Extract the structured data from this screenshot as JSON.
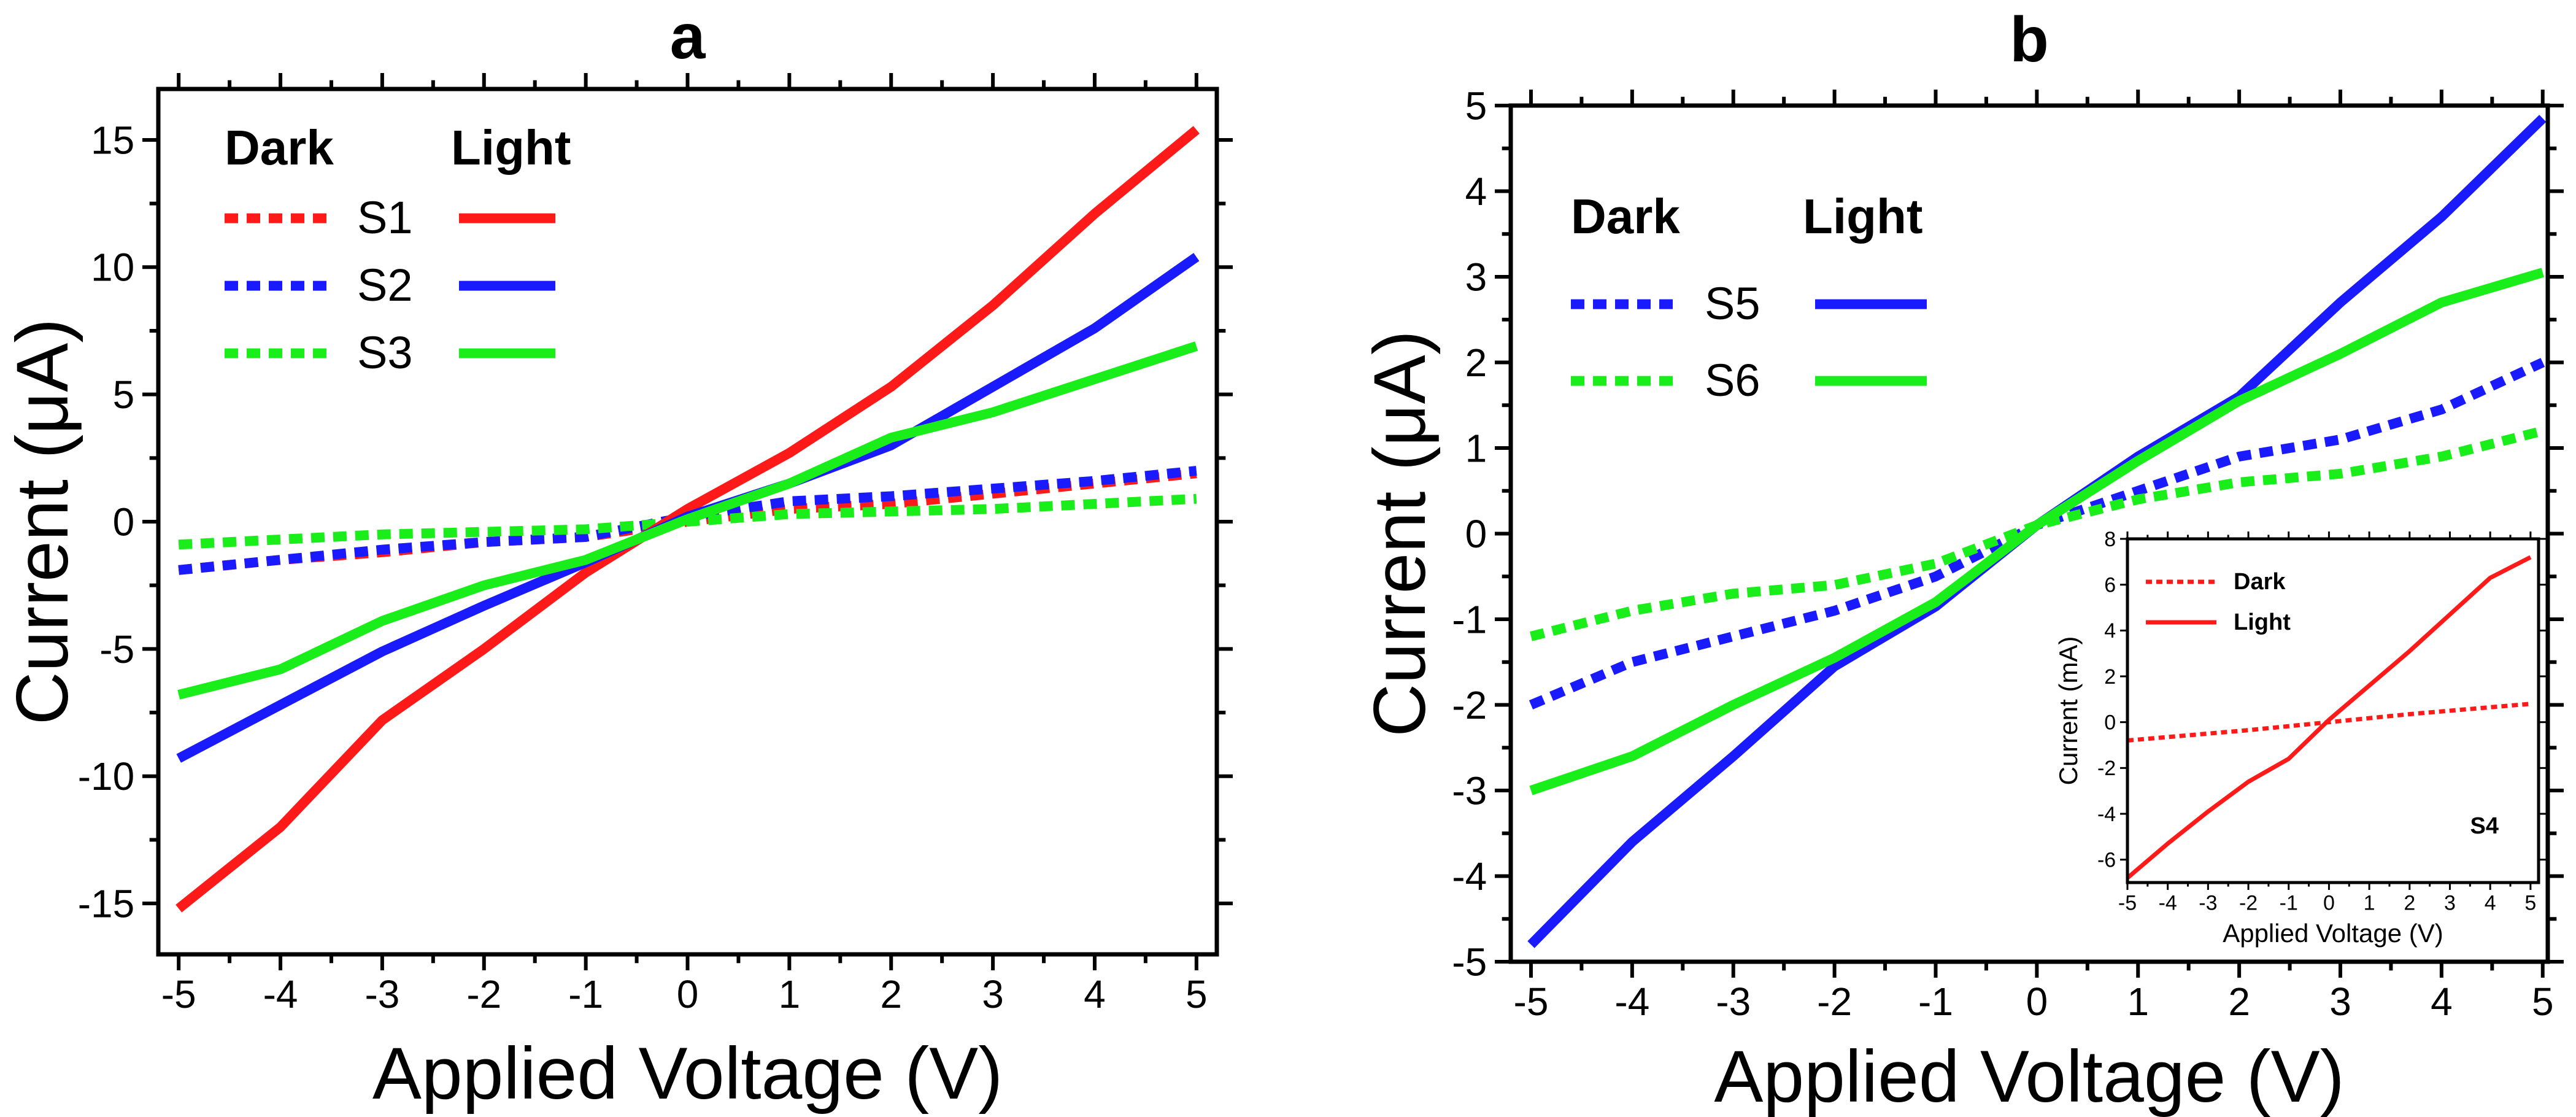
{
  "colors": {
    "S1": "#ff1a1a",
    "S2": "#1a1aff",
    "S3": "#1aee1a",
    "S4": "#ff1a1a",
    "S5": "#1a1aff",
    "S6": "#1aee1a",
    "axis": "#000000"
  },
  "chart_data": [
    {
      "id": "a",
      "type": "line",
      "title": "a",
      "xlabel": "Applied Voltage (V)",
      "ylabel": "Current (μA)",
      "xlim": [
        -5.2,
        5.2
      ],
      "ylim": [
        -17,
        17
      ],
      "xticks": [
        -5,
        -4,
        -3,
        -2,
        -1,
        0,
        1,
        2,
        3,
        4,
        5
      ],
      "xtick_labels": [
        "-5",
        "-4",
        "-3",
        "-2",
        "-1",
        "0",
        "1",
        "2",
        "3",
        "4",
        "5"
      ],
      "yticks": [
        -15,
        -10,
        -5,
        0,
        5,
        10,
        15
      ],
      "ytick_labels": [
        "-15",
        "-10",
        "-5",
        "0",
        "5",
        "10",
        "15"
      ],
      "legend": {
        "position": "top-left",
        "dark_header": "Dark",
        "light_header": "Light",
        "entries": [
          "S1",
          "S2",
          "S3"
        ]
      },
      "series": [
        {
          "name": "S1",
          "condition": "Dark",
          "style": "dashed",
          "x": [
            -5,
            -4,
            -3,
            -2,
            -1,
            0,
            1,
            2,
            3,
            4,
            5
          ],
          "y": [
            -1.9,
            -1.5,
            -1.2,
            -0.8,
            -0.6,
            0.0,
            0.5,
            0.7,
            1.1,
            1.5,
            1.9
          ]
        },
        {
          "name": "S2",
          "condition": "Dark",
          "style": "dashed",
          "x": [
            -5,
            -4,
            -3,
            -2,
            -1,
            0,
            1,
            2,
            3,
            4,
            5
          ],
          "y": [
            -1.9,
            -1.5,
            -1.1,
            -0.8,
            -0.6,
            0.2,
            0.8,
            1.0,
            1.3,
            1.6,
            2.0
          ]
        },
        {
          "name": "S3",
          "condition": "Dark",
          "style": "dashed",
          "x": [
            -5,
            -4,
            -3,
            -2,
            -1,
            0,
            1,
            2,
            3,
            4,
            5
          ],
          "y": [
            -0.9,
            -0.7,
            -0.5,
            -0.4,
            -0.3,
            0.0,
            0.3,
            0.4,
            0.5,
            0.7,
            0.9
          ]
        },
        {
          "name": "S1",
          "condition": "Light",
          "style": "solid",
          "x": [
            -5,
            -4,
            -3,
            -2,
            -1,
            0,
            1,
            2,
            3,
            4,
            5
          ],
          "y": [
            -15.2,
            -12.0,
            -7.8,
            -5.0,
            -2.0,
            0.5,
            2.7,
            5.3,
            8.5,
            12.1,
            15.4
          ]
        },
        {
          "name": "S2",
          "condition": "Light",
          "style": "solid",
          "x": [
            -5,
            -4,
            -3,
            -2,
            -1,
            0,
            1,
            2,
            3,
            4,
            5
          ],
          "y": [
            -9.3,
            -7.2,
            -5.1,
            -3.3,
            -1.6,
            0.2,
            1.5,
            3.0,
            5.3,
            7.6,
            10.4
          ]
        },
        {
          "name": "S3",
          "condition": "Light",
          "style": "solid",
          "x": [
            -5,
            -4,
            -3,
            -2,
            -1,
            0,
            1,
            2,
            3,
            4,
            5
          ],
          "y": [
            -6.8,
            -5.8,
            -3.9,
            -2.5,
            -1.5,
            0.1,
            1.5,
            3.3,
            4.3,
            5.6,
            6.9
          ]
        }
      ]
    },
    {
      "id": "b",
      "type": "line",
      "title": "b",
      "xlabel": "Applied Voltage (V)",
      "ylabel": "Current (μA)",
      "xlim": [
        -5.2,
        5.05
      ],
      "ylim": [
        -5,
        5
      ],
      "xticks": [
        -5,
        -4,
        -3,
        -2,
        -1,
        0,
        1,
        2,
        3,
        4,
        5
      ],
      "xtick_labels": [
        "-5",
        "-4",
        "-3",
        "-2",
        "-1",
        "0",
        "1",
        "2",
        "3",
        "4",
        "5"
      ],
      "yticks": [
        -5,
        -4,
        -3,
        -2,
        -1,
        0,
        1,
        2,
        3,
        4,
        5
      ],
      "ytick_labels": [
        "-5",
        "-4",
        "-3",
        "-2",
        "-1",
        "0",
        "1",
        "2",
        "3",
        "4",
        "5"
      ],
      "legend": {
        "position": "top-left",
        "dark_header": "Dark",
        "light_header": "Light",
        "entries": [
          "S5",
          "S6"
        ]
      },
      "series": [
        {
          "name": "S5",
          "condition": "Dark",
          "style": "dashed",
          "x": [
            -5,
            -4,
            -3,
            -2,
            -1,
            0,
            1,
            2,
            3,
            4,
            5
          ],
          "y": [
            -2.0,
            -1.5,
            -1.2,
            -0.9,
            -0.5,
            0.1,
            0.5,
            0.9,
            1.1,
            1.45,
            2.0
          ]
        },
        {
          "name": "S6",
          "condition": "Dark",
          "style": "dashed",
          "x": [
            -5,
            -4,
            -3,
            -2,
            -1,
            0,
            1,
            2,
            3,
            4,
            5
          ],
          "y": [
            -1.2,
            -0.9,
            -0.7,
            -0.6,
            -0.35,
            0.1,
            0.4,
            0.6,
            0.7,
            0.9,
            1.2
          ]
        },
        {
          "name": "S5",
          "condition": "Light",
          "style": "solid",
          "x": [
            -5,
            -4,
            -3,
            -2,
            -1,
            0,
            1,
            2,
            3,
            4,
            5
          ],
          "y": [
            -4.8,
            -3.6,
            -2.6,
            -1.55,
            -0.85,
            0.1,
            0.9,
            1.6,
            2.7,
            3.7,
            4.85
          ]
        },
        {
          "name": "S6",
          "condition": "Light",
          "style": "solid",
          "x": [
            -5,
            -4,
            -3,
            -2,
            -1,
            0,
            1,
            2,
            3,
            4,
            5
          ],
          "y": [
            -3.0,
            -2.6,
            -2.0,
            -1.45,
            -0.8,
            0.1,
            0.85,
            1.55,
            2.1,
            2.7,
            3.05
          ]
        }
      ]
    },
    {
      "id": "b-inset",
      "type": "line",
      "title": "S4",
      "xlabel": "Applied Voltage (V)",
      "ylabel": "Current (mA)",
      "xlim": [
        -5,
        5.2
      ],
      "ylim": [
        -7,
        8
      ],
      "xticks": [
        -5,
        -4,
        -3,
        -2,
        -1,
        0,
        1,
        2,
        3,
        4,
        5
      ],
      "xtick_labels": [
        "-5",
        "-4",
        "-3",
        "-2",
        "-1",
        "0",
        "1",
        "2",
        "3",
        "4",
        "5"
      ],
      "yticks": [
        -6,
        -4,
        -2,
        0,
        2,
        4,
        6,
        8
      ],
      "ytick_labels": [
        "-6",
        "-4",
        "-2",
        "0",
        "2",
        "4",
        "6",
        "8"
      ],
      "legend": {
        "position": "top-left",
        "entries": [
          "Dark",
          "Light"
        ]
      },
      "series": [
        {
          "name": "Dark",
          "style": "dashed",
          "x": [
            -5,
            -2,
            0,
            2,
            5
          ],
          "y": [
            -0.8,
            -0.35,
            0.0,
            0.35,
            0.8
          ]
        },
        {
          "name": "Light",
          "style": "solid",
          "x": [
            -5,
            -4,
            -3,
            -2,
            -1,
            0,
            1,
            2,
            3,
            4,
            5
          ],
          "y": [
            -6.8,
            -5.3,
            -3.9,
            -2.6,
            -1.6,
            0.1,
            1.6,
            3.1,
            4.7,
            6.3,
            7.2
          ]
        }
      ]
    }
  ]
}
